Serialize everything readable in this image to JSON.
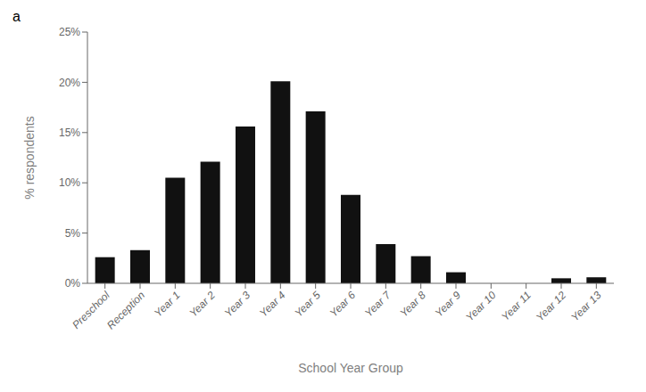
{
  "chart_data": {
    "type": "bar",
    "annotations": [
      "a"
    ],
    "xlabel": "School Year Group",
    "ylabel": "% respondents",
    "categories": [
      "Preschool",
      "Reception",
      "Year 1",
      "Year 2",
      "Year 3",
      "Year 4",
      "Year 5",
      "Year 6",
      "Year 7",
      "Year 8",
      "Year 9",
      "Year 10",
      "Year 11",
      "Year 12",
      "Year 13"
    ],
    "values": [
      0.026,
      0.033,
      0.105,
      0.121,
      0.156,
      0.201,
      0.171,
      0.088,
      0.039,
      0.027,
      0.011,
      0.0,
      0.0,
      0.005,
      0.006
    ],
    "color": "#111111",
    "ylim": [
      0,
      0.25
    ],
    "yticks": [
      {
        "value": 0.0,
        "label": "0%"
      },
      {
        "value": 0.05,
        "label": "5%"
      },
      {
        "value": 0.1,
        "label": "10%"
      },
      {
        "value": 0.15,
        "label": "15%"
      },
      {
        "value": 0.2,
        "label": "20%"
      },
      {
        "value": 0.25,
        "label": "25%"
      }
    ],
    "grid": false
  }
}
